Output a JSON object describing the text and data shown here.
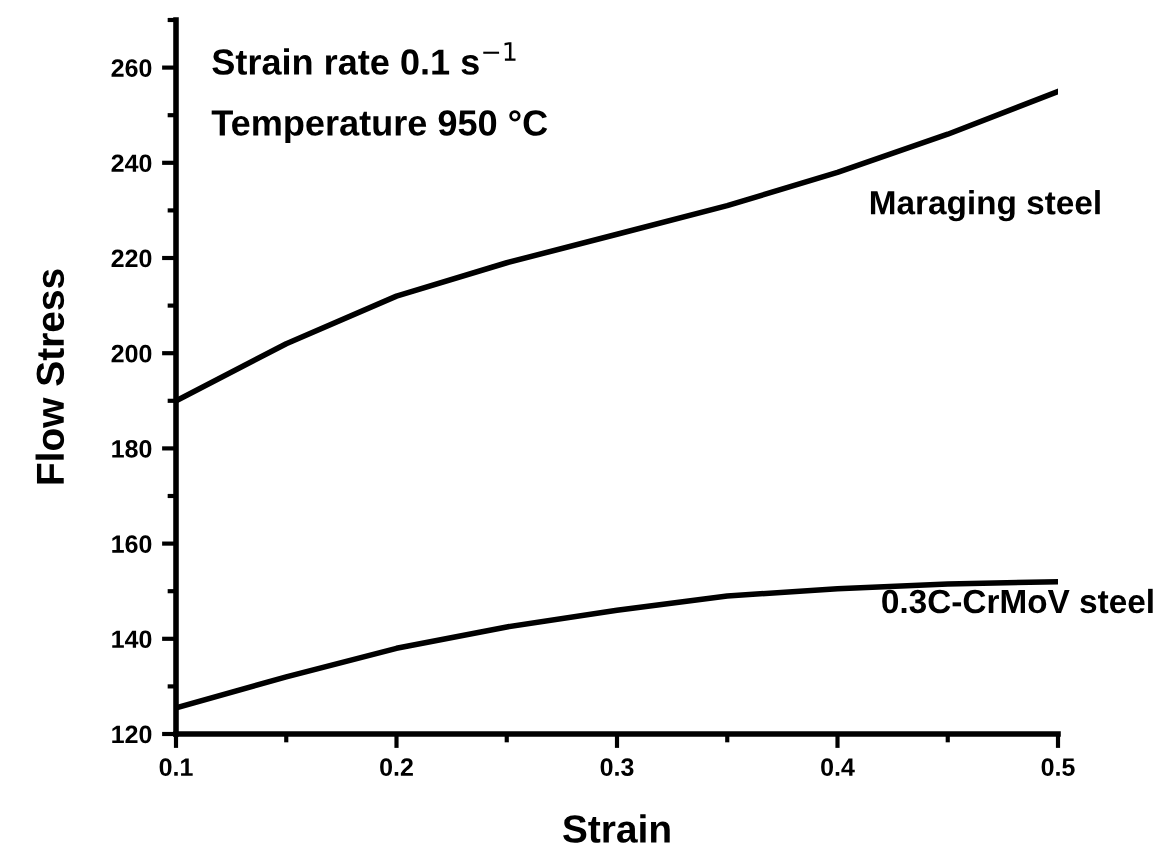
{
  "chart_data": {
    "type": "line",
    "xlabel": "Strain",
    "ylabel": "Flow Stress",
    "annotations": [
      "Strain rate 0.1 s$^{−1}$",
      "Temperature 950 °C"
    ],
    "x": [
      0.1,
      0.15,
      0.2,
      0.25,
      0.3,
      0.35,
      0.4,
      0.45,
      0.5
    ],
    "series": [
      {
        "name": "Maraging steel",
        "color": "#000000",
        "values": [
          190,
          202,
          212,
          219,
          225,
          231,
          238,
          246,
          255
        ]
      },
      {
        "name": "0.3C-CrMoV steel",
        "color": "#000000",
        "values": [
          125.5,
          132,
          138,
          142.5,
          146,
          149,
          150.5,
          151.5,
          152
        ]
      }
    ],
    "xlim": [
      0.1,
      0.5
    ],
    "ylim": [
      120,
      270
    ],
    "xticks": [
      0.1,
      0.2,
      0.3,
      0.4,
      0.5
    ],
    "yticks": [
      120,
      140,
      160,
      180,
      200,
      220,
      240,
      260
    ],
    "grid": false,
    "legend": false,
    "marker": "none",
    "line_style": "solid"
  }
}
